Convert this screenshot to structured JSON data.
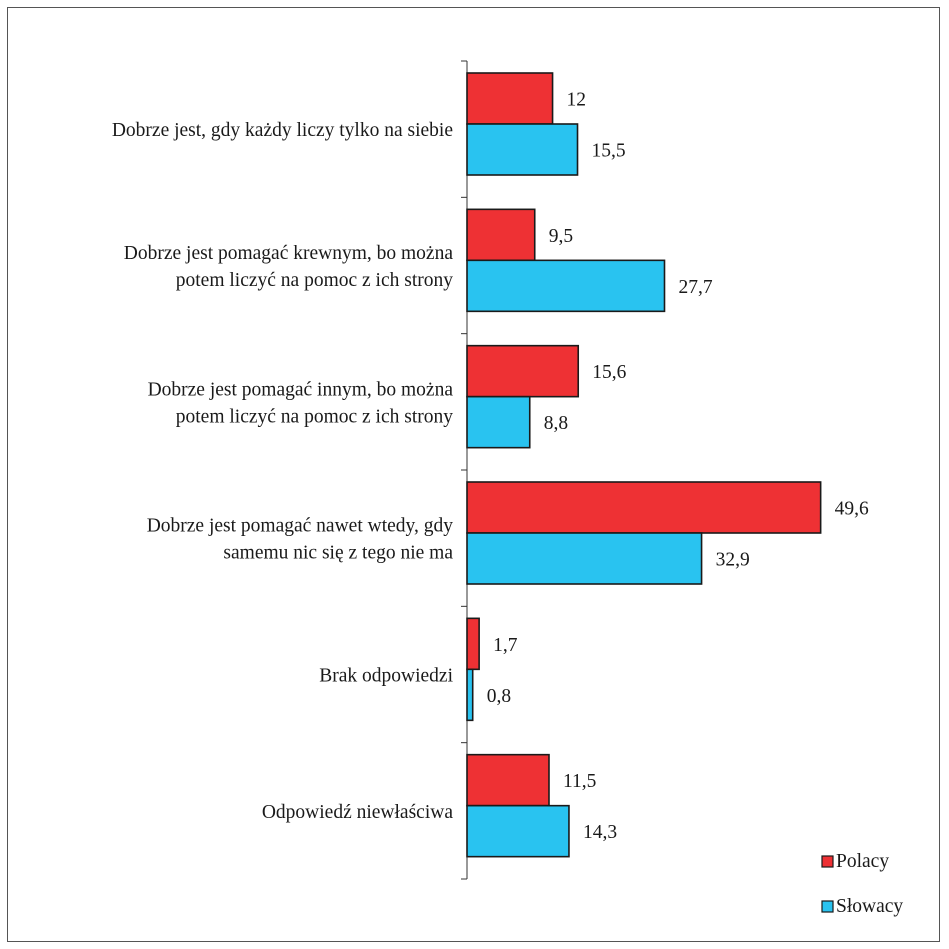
{
  "chart_data": {
    "type": "bar",
    "orientation": "horizontal",
    "categories": [
      [
        "Dobrze jest, gdy każdy liczy tylko na siebie"
      ],
      [
        "Dobrze jest pomagać krewnym, bo można",
        "potem liczyć na pomoc z ich strony"
      ],
      [
        "Dobrze jest pomagać innym, bo można",
        "potem liczyć na pomoc z ich strony"
      ],
      [
        "Dobrze jest pomagać nawet wtedy, gdy",
        "samemu nic się z tego nie ma"
      ],
      [
        "Brak odpowiedzi"
      ],
      [
        "Odpowiedź niewłaściwa"
      ]
    ],
    "series": [
      {
        "name": "Polacy",
        "color": "#ee3134",
        "values": [
          12,
          9.5,
          15.6,
          49.6,
          1.7,
          11.5
        ],
        "labels": [
          "12",
          "9,5",
          "15,6",
          "49,6",
          "1,7",
          "11,5"
        ]
      },
      {
        "name": "Słowacy",
        "color": "#29c3f0",
        "values": [
          15.5,
          27.7,
          8.8,
          32.9,
          0.8,
          14.3
        ],
        "labels": [
          "15,5",
          "27,7",
          "8,8",
          "32,9",
          "0,8",
          "14,3"
        ]
      }
    ],
    "xlim": [
      0,
      60
    ],
    "grid": false,
    "legend_position": "bottom-right"
  }
}
